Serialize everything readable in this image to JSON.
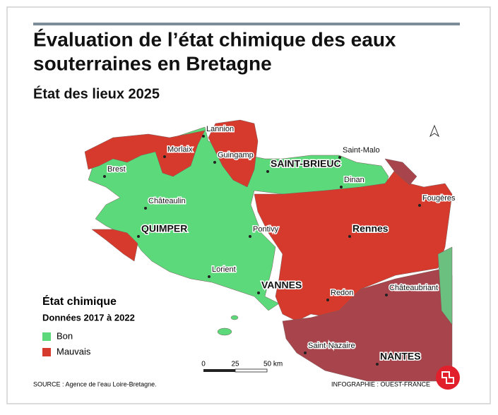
{
  "header": {
    "title_lines": [
      "Évaluation de l’état chimique des eaux",
      "souterraines en Bretagne"
    ],
    "subtitle": "État des lieux 2025"
  },
  "map": {
    "cities": [
      {
        "label": "Lannion",
        "bold": false
      },
      {
        "label": "Morlaix",
        "bold": false
      },
      {
        "label": "Guingamp",
        "bold": false
      },
      {
        "label": "Saint-Malo",
        "bold": false
      },
      {
        "label": "Brest",
        "bold": false
      },
      {
        "label": "SAINT-BRIEUC",
        "bold": true
      },
      {
        "label": "Dinan",
        "bold": false
      },
      {
        "label": "Fougères",
        "bold": false
      },
      {
        "label": "Châteaulin",
        "bold": false
      },
      {
        "label": "QUIMPER",
        "bold": true
      },
      {
        "label": "Pontivy",
        "bold": false
      },
      {
        "label": "Rennes",
        "bold": true
      },
      {
        "label": "Lorient",
        "bold": false
      },
      {
        "label": "VANNES",
        "bold": true
      },
      {
        "label": "Redon",
        "bold": false
      },
      {
        "label": "Châteaubriant",
        "bold": false
      },
      {
        "label": "Saint-Nazaire",
        "bold": false
      },
      {
        "label": "NANTES",
        "bold": true
      }
    ],
    "scale_labels": [
      "0",
      "25",
      "50 km"
    ]
  },
  "legend": {
    "title": "État chimique",
    "subtitle": "Données 2017 à 2022",
    "items": [
      {
        "label": "Bon",
        "color": "#5cd97a"
      },
      {
        "label": "Mauvais",
        "color": "#d63a2c"
      }
    ]
  },
  "footer": {
    "source": "SOURCE : Agence de l’eau Loire-Bretagne.",
    "credit": "INFOGRAPHIE : OUEST-FRANCE"
  }
}
